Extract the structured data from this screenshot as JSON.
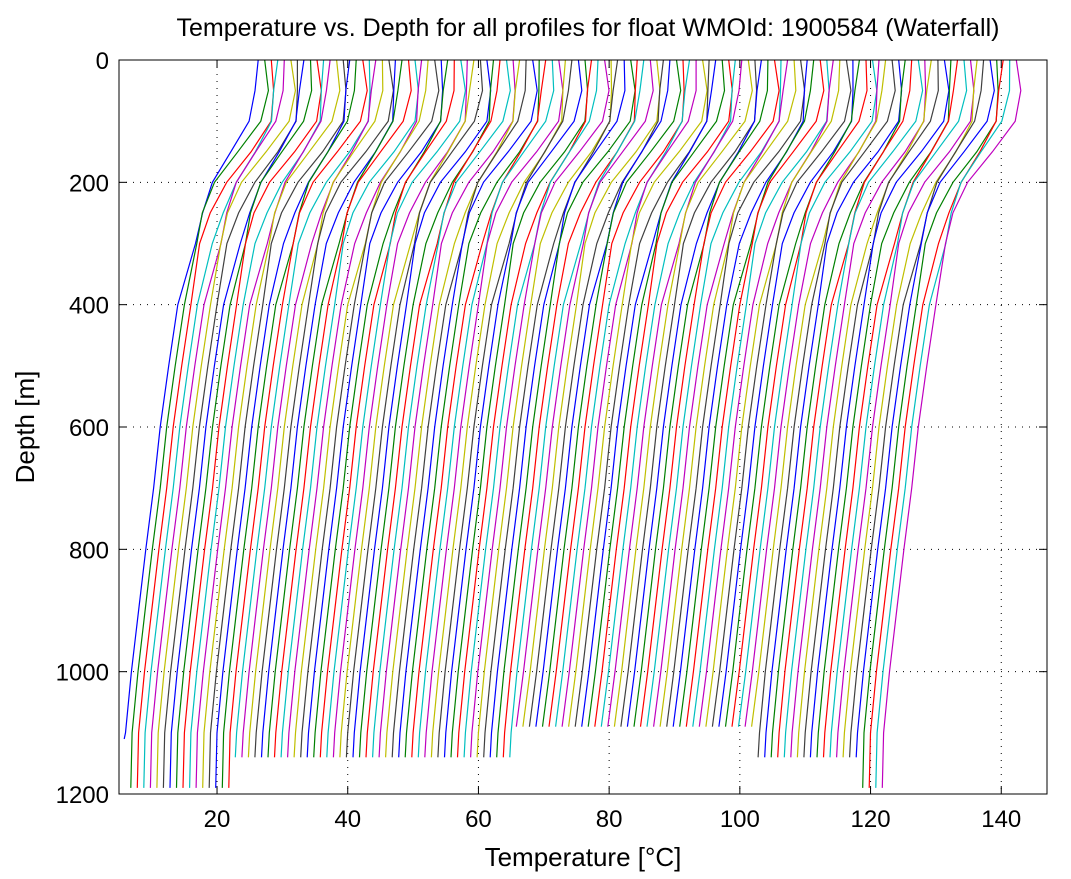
{
  "chart_data": {
    "type": "line",
    "title": "Temperature vs. Depth for all profiles for float WMOId: 1900584 (Waterfall)",
    "xlabel": "Temperature [°C]",
    "ylabel": "Depth [m]",
    "xlim": [
      5,
      147
    ],
    "ylim": [
      1200,
      0
    ],
    "xticks": [
      20,
      40,
      60,
      80,
      100,
      120,
      140
    ],
    "yticks": [
      0,
      200,
      400,
      600,
      800,
      1000,
      1200
    ],
    "grid": true,
    "y_reversed": true,
    "line_colors": [
      "#0000ff",
      "#008000",
      "#ff0000",
      "#00bfbf",
      "#bf00bf",
      "#bfbf00",
      "#404040"
    ],
    "profile_shape": {
      "depths": [
        0,
        50,
        100,
        150,
        200,
        250,
        300,
        400,
        500,
        600,
        700,
        800,
        900,
        1000,
        1100
      ],
      "offsets": [
        20.5,
        20.5,
        19.8,
        16.8,
        13.5,
        11.5,
        10.2,
        8.2,
        6.8,
        5.5,
        4.5,
        3.3,
        2.2,
        1.1,
        0.2
      ]
    },
    "profiles": {
      "count": 117,
      "first_bottom_temperature": 5.8,
      "temperature_step": 1.0,
      "bottom_depths": [
        1110,
        1190,
        1190,
        1190,
        1190,
        1190,
        1190,
        1190,
        1190,
        1190,
        1190,
        1190,
        1190,
        1190,
        1190,
        1190,
        1190,
        1140,
        1140,
        1140,
        1140,
        1140,
        1140,
        1140,
        1140,
        1140,
        1140,
        1140,
        1140,
        1140,
        1140,
        1140,
        1140,
        1140,
        1140,
        1140,
        1140,
        1140,
        1140,
        1140,
        1140,
        1140,
        1140,
        1140,
        1140,
        1140,
        1140,
        1140,
        1140,
        1140,
        1140,
        1140,
        1140,
        1140,
        1140,
        1140,
        1140,
        1140,
        1140,
        1140,
        1090,
        1090,
        1090,
        1090,
        1090,
        1090,
        1090,
        1090,
        1090,
        1090,
        1090,
        1090,
        1090,
        1090,
        1090,
        1090,
        1090,
        1090,
        1090,
        1090,
        1090,
        1090,
        1090,
        1090,
        1090,
        1090,
        1090,
        1090,
        1090,
        1090,
        1090,
        1090,
        1090,
        1090,
        1090,
        1090,
        1090,
        1140,
        1140,
        1140,
        1140,
        1140,
        1140,
        1140,
        1140,
        1140,
        1140,
        1140,
        1140,
        1140,
        1140,
        1140,
        1140,
        1190,
        1190,
        1190,
        1190
      ]
    }
  }
}
